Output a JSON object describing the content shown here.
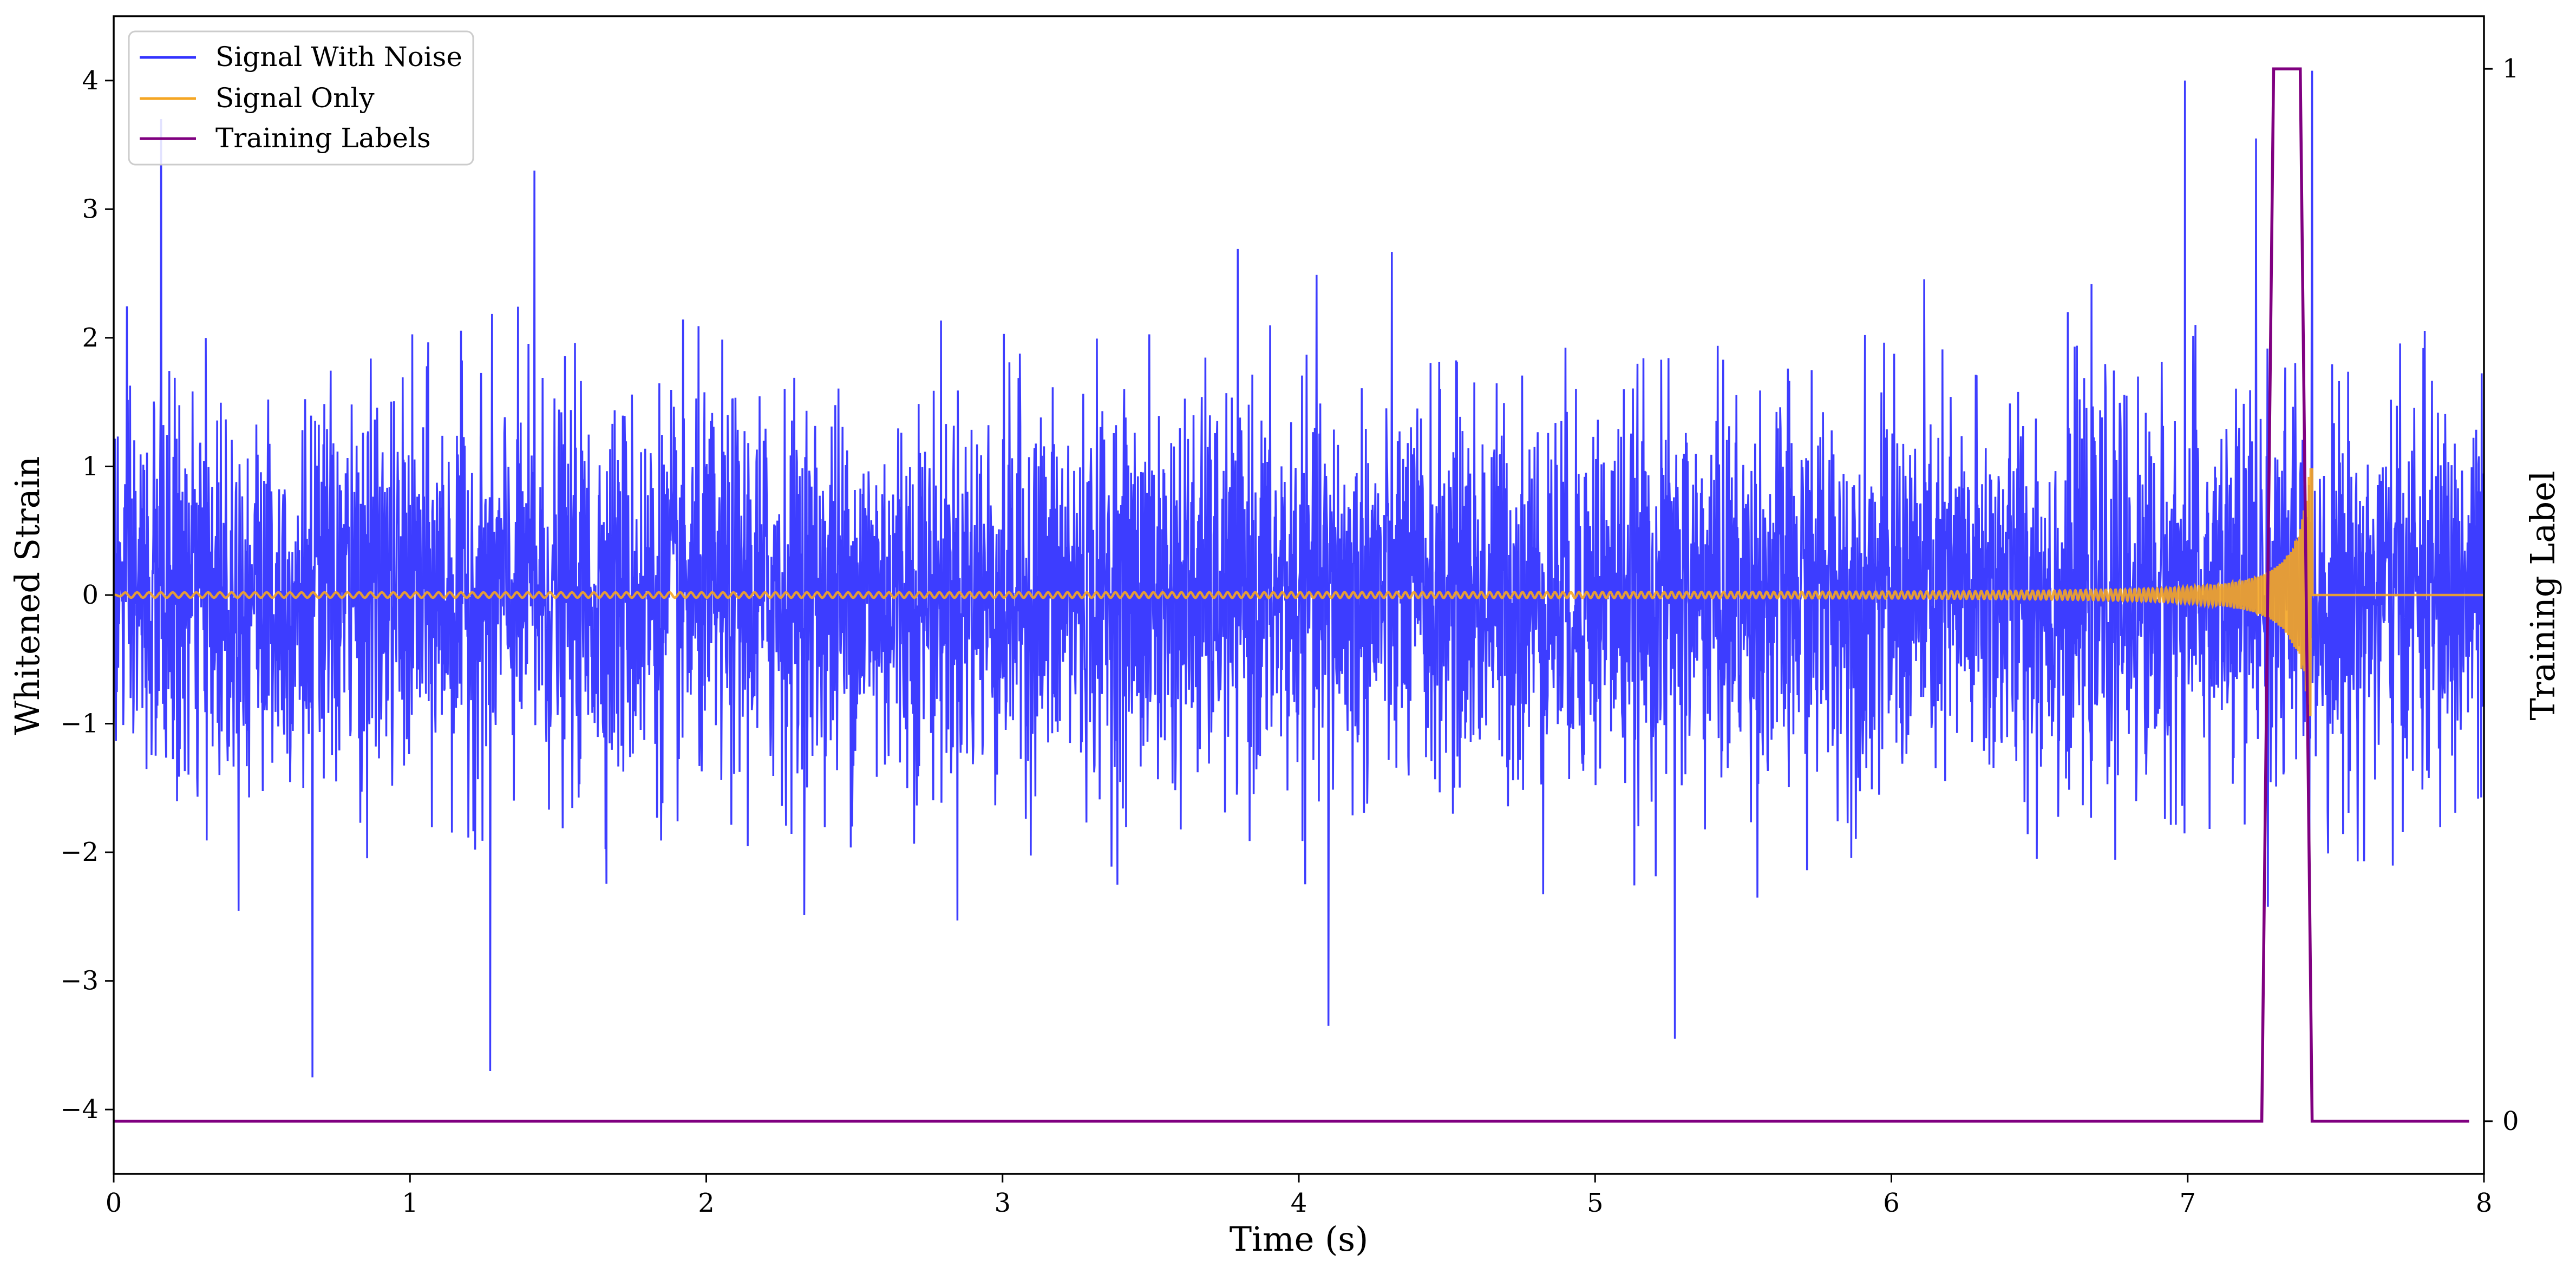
{
  "chart_data": {
    "type": "line",
    "title": "",
    "xlabel": "Time (s)",
    "ylabel": "Whitened Strain",
    "y2label": "Training Label",
    "xlim": [
      0,
      8
    ],
    "ylim": [
      -4.5,
      4.5
    ],
    "y2lim": [
      -0.05,
      1.05
    ],
    "xticks": [
      0,
      1,
      2,
      3,
      4,
      5,
      6,
      7,
      8
    ],
    "xtick_labels": [
      "0",
      "1",
      "2",
      "3",
      "4",
      "5",
      "6",
      "7",
      "8"
    ],
    "yticks": [
      -4,
      -3,
      -2,
      -1,
      0,
      1,
      2,
      3,
      4
    ],
    "ytick_labels": [
      "−4",
      "−3",
      "−2",
      "−1",
      "0",
      "1",
      "2",
      "3",
      "4"
    ],
    "y2ticks": [
      0,
      1
    ],
    "y2tick_labels": [
      "0",
      "1"
    ],
    "grid": false,
    "legend_position": "top-left",
    "series": [
      {
        "name": "Signal With Noise",
        "color": "#3333ff",
        "axis": "left",
        "description_values": {
          "noise_std": 0.75,
          "max_positive_spikes": [
            [
              0.16,
              3.7
            ],
            [
              1.42,
              3.3
            ],
            [
              6.99,
              4.0
            ],
            [
              7.23,
              3.55
            ]
          ],
          "max_negative_spikes": [
            [
              0.67,
              -3.75
            ],
            [
              1.27,
              -3.7
            ],
            [
              5.27,
              -3.45
            ],
            [
              4.1,
              -3.35
            ]
          ]
        }
      },
      {
        "name": "Signal Only",
        "color": "#f5a623",
        "axis": "left",
        "description_values": {
          "start_amplitude": 0.02,
          "peak_time": 7.38,
          "peak_amplitude": 1.2,
          "end_time": 7.4
        }
      },
      {
        "name": "Training Labels",
        "color": "#800080",
        "axis": "right",
        "x": [
          0,
          7.25,
          7.29,
          7.38,
          7.42,
          7.95
        ],
        "values": [
          0,
          0,
          1,
          1,
          0,
          0
        ]
      }
    ]
  }
}
